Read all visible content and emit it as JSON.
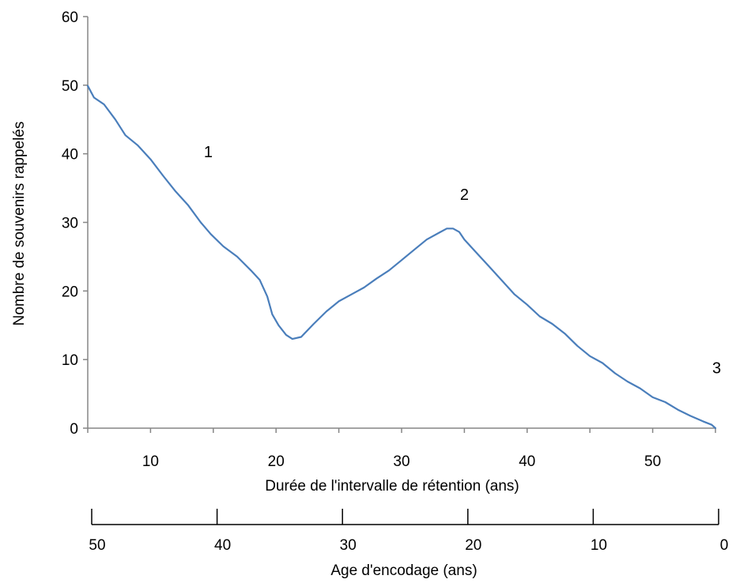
{
  "chart_data": {
    "type": "line",
    "title": "",
    "xlabel": "Durée de l'intervalle de rétention (ans)",
    "ylabel": "Nombre de souvenirs rappelés",
    "xlim": [
      5,
      55
    ],
    "ylim": [
      0,
      60
    ],
    "y_ticks": [
      "0",
      "10",
      "20",
      "30",
      "40",
      "50",
      "60"
    ],
    "x_tick_values": [
      5,
      10,
      15,
      20,
      25,
      30,
      35,
      40,
      45,
      50,
      55
    ],
    "x_tick_labels": [
      "10",
      "20",
      "30",
      "40",
      "50"
    ],
    "x_tick_label_positions": [
      10,
      20,
      30,
      40,
      50
    ],
    "secondary_axis": {
      "label": "Age d'encodage (ans)",
      "tick_labels": [
        "50",
        "40",
        "30",
        "20",
        "10",
        "0"
      ],
      "tick_positions": [
        5,
        15,
        25,
        35,
        45,
        55
      ]
    },
    "annotations": [
      {
        "text": "1",
        "x": 14.6,
        "y": 40.3
      },
      {
        "text": "2",
        "x": 35.0,
        "y": 34.1
      },
      {
        "text": "3",
        "x": 55.1,
        "y": 8.8
      }
    ],
    "series": [
      {
        "color": "#4a7ebb",
        "x": [
          5.0,
          5.5,
          6.3,
          7.2,
          8.0,
          9.0,
          10.0,
          11.0,
          12.0,
          13.0,
          14.0,
          14.8,
          15.8,
          16.9,
          18.0,
          18.7,
          19.3,
          19.7,
          20.2,
          20.8,
          21.3,
          22.0,
          23.0,
          24.0,
          25.0,
          26.0,
          27.0,
          28.0,
          29.0,
          30.0,
          31.0,
          32.0,
          33.0,
          33.6,
          34.1,
          34.6,
          35.0,
          36.0,
          37.0,
          38.0,
          39.0,
          40.0,
          41.0,
          42.0,
          43.0,
          44.0,
          45.0,
          46.0,
          47.0,
          48.0,
          49.0,
          50.0,
          51.0,
          52.0,
          53.0,
          54.0,
          54.7,
          55.0
        ],
        "y": [
          49.9,
          48.2,
          47.2,
          45.0,
          42.7,
          41.2,
          39.2,
          36.8,
          34.5,
          32.5,
          30.0,
          28.3,
          26.5,
          25.0,
          23.0,
          21.6,
          19.2,
          16.6,
          15.0,
          13.6,
          13.0,
          13.3,
          15.2,
          17.0,
          18.5,
          19.5,
          20.5,
          21.8,
          23.0,
          24.5,
          26.0,
          27.5,
          28.5,
          29.1,
          29.1,
          28.6,
          27.5,
          25.5,
          23.5,
          21.5,
          19.5,
          18.0,
          16.3,
          15.2,
          13.8,
          12.0,
          10.5,
          9.5,
          8.0,
          6.8,
          5.8,
          4.5,
          3.8,
          2.7,
          1.8,
          1.0,
          0.5,
          0.0
        ]
      }
    ]
  }
}
